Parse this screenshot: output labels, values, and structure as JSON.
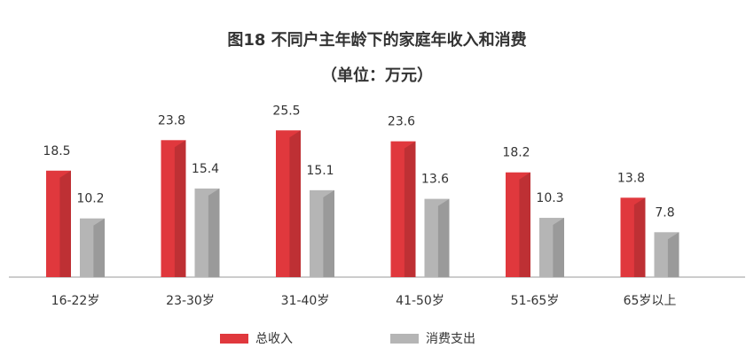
{
  "chart_data": {
    "type": "bar",
    "title": "图18  不同户主年龄下的家庭年收入和消费",
    "subtitle": "（单位：万元）",
    "categories": [
      "16-22岁",
      "23-30岁",
      "31-40岁",
      "41-50岁",
      "51-65岁",
      "65岁以上"
    ],
    "series": [
      {
        "name": "总收入",
        "color": "#e0383d",
        "values": [
          18.5,
          23.8,
          25.5,
          23.6,
          18.2,
          13.8
        ]
      },
      {
        "name": "消费支出",
        "color": "#b5b5b5",
        "values": [
          10.2,
          15.4,
          15.1,
          13.6,
          10.3,
          7.8
        ]
      }
    ]
  }
}
